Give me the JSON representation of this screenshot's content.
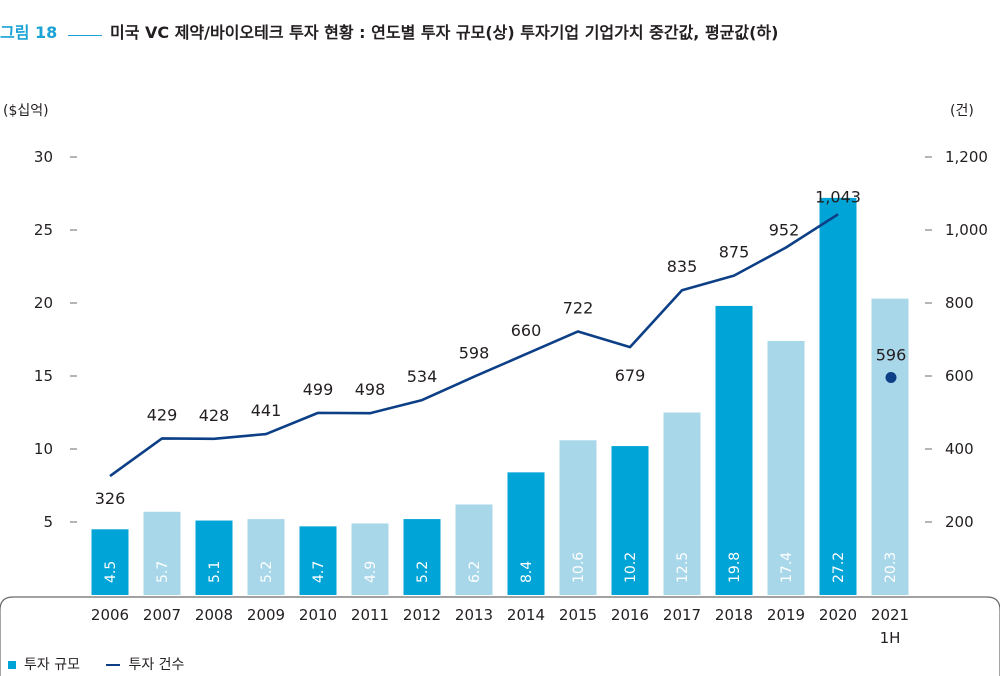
{
  "figure": {
    "label": "그림 18",
    "title": "미국 VC 제약/바이오테크 투자 현황 : 연도별 투자 규모(상) 투자기업 기업가치 중간값, 평균값(하)"
  },
  "colors": {
    "accent": "#1aa3d4",
    "bar_dark": "#00a4d6",
    "bar_light": "#a9d7ea",
    "line": "#0d3f86",
    "dot": "#0d3f86",
    "axis_text": "#231f20"
  },
  "chart_data": {
    "type": "bar+line",
    "categories": [
      "2006",
      "2007",
      "2008",
      "2009",
      "2010",
      "2011",
      "2012",
      "2013",
      "2014",
      "2015",
      "2016",
      "2017",
      "2018",
      "2019",
      "2020",
      "2021\n1H"
    ],
    "ylabel_left": "($십억)",
    "ylabel_right": "(건)",
    "ylim_left": [
      0,
      30
    ],
    "ylim_right": [
      0,
      1200
    ],
    "yticks_left": [
      "5",
      "10",
      "15",
      "20",
      "25",
      "30"
    ],
    "yticks_left_values": [
      5,
      10,
      15,
      20,
      25,
      30
    ],
    "yticks_right": [
      "200",
      "400",
      "600",
      "800",
      "1,000",
      "1,200"
    ],
    "yticks_right_values": [
      200,
      400,
      600,
      800,
      1000,
      1200
    ],
    "grid": false,
    "legend_position": "bottom-left",
    "series": [
      {
        "name": "투자 규모",
        "type": "bar",
        "axis": "left",
        "values": [
          4.5,
          5.7,
          5.1,
          5.2,
          4.7,
          4.9,
          5.2,
          6.2,
          8.4,
          10.6,
          10.2,
          12.5,
          19.8,
          17.4,
          27.2,
          20.3
        ],
        "labels": [
          "4.5",
          "5.7",
          "5.1",
          "5.2",
          "4.7",
          "4.9",
          "5.2",
          "6.2",
          "8.4",
          "10.6",
          "10.2",
          "12.5",
          "19.8",
          "17.4",
          "27.2",
          "20.3"
        ],
        "shade": [
          "dark",
          "light",
          "dark",
          "light",
          "dark",
          "light",
          "dark",
          "light",
          "dark",
          "light",
          "dark",
          "light",
          "dark",
          "light",
          "dark",
          "light"
        ]
      },
      {
        "name": "투자 건수",
        "type": "line",
        "axis": "right",
        "values": [
          326,
          429,
          428,
          441,
          499,
          498,
          534,
          598,
          660,
          722,
          679,
          835,
          875,
          952,
          1043,
          null
        ],
        "labels": [
          "326",
          "429",
          "428",
          "441",
          "499",
          "498",
          "534",
          "598",
          "660",
          "722",
          "679",
          "835",
          "875",
          "952",
          "1,043",
          ""
        ],
        "separate_point": {
          "category": "2021\n1H",
          "value": 596,
          "label": "596"
        }
      }
    ]
  },
  "legend": {
    "bar_label": "투자 규모",
    "line_label": "투자 건수"
  }
}
